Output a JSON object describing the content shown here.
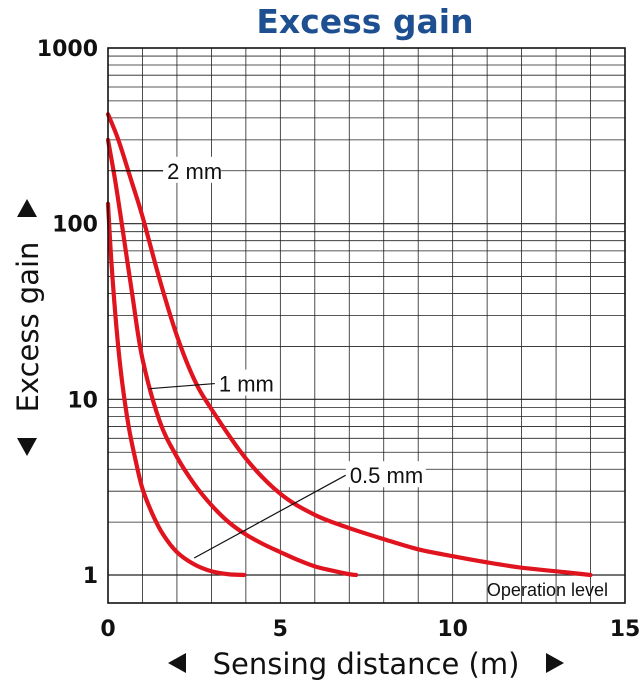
{
  "chart_data": {
    "type": "line",
    "title": "Excess gain",
    "xlabel": "Sensing distance (m)",
    "ylabel": "Excess gain",
    "xlim": [
      0,
      15
    ],
    "ylim": [
      1,
      1000
    ],
    "yscale": "log",
    "x_ticks": [
      "0",
      "5",
      "10",
      "15"
    ],
    "y_ticks": [
      "1",
      "10",
      "100",
      "1000"
    ],
    "grid": true,
    "annotation": "Operation level",
    "series": [
      {
        "name": "2 mm",
        "color": "#e0141e",
        "x": [
          0,
          0.3,
          0.7,
          1,
          1.5,
          2,
          2.5,
          3,
          4,
          5,
          6,
          7,
          8,
          9,
          10,
          11,
          12,
          13,
          14
        ],
        "y": [
          420,
          300,
          170,
          110,
          48,
          23,
          13,
          8.8,
          4.6,
          2.9,
          2.2,
          1.85,
          1.6,
          1.4,
          1.28,
          1.18,
          1.1,
          1.05,
          1
        ]
      },
      {
        "name": "1 mm",
        "color": "#e0141e",
        "x": [
          0,
          0.2,
          0.4,
          0.7,
          1,
          1.5,
          2,
          2.5,
          3,
          3.5,
          4,
          4.5,
          5,
          5.5,
          6,
          6.5,
          7,
          7.2
        ],
        "y": [
          300,
          180,
          100,
          40,
          17,
          7.5,
          4.7,
          3.3,
          2.5,
          2,
          1.7,
          1.5,
          1.35,
          1.22,
          1.12,
          1.06,
          1.01,
          1
        ]
      },
      {
        "name": "0.5 mm",
        "color": "#e0141e",
        "x": [
          0,
          0.1,
          0.25,
          0.4,
          0.6,
          0.8,
          1,
          1.3,
          1.6,
          2,
          2.5,
          3,
          3.5,
          3.95
        ],
        "y": [
          130,
          60,
          25,
          13,
          7,
          4.5,
          3.1,
          2.2,
          1.7,
          1.35,
          1.15,
          1.05,
          1.01,
          1
        ]
      }
    ],
    "series_labels": [
      {
        "text": "2 mm",
        "from": [
          0.1,
          200
        ],
        "to": [
          1.6,
          200
        ]
      },
      {
        "text": "1 mm",
        "from": [
          1.2,
          11.5
        ],
        "to": [
          3.1,
          12.3
        ]
      },
      {
        "text": "0.5 mm",
        "from": [
          2.5,
          1.25
        ],
        "to": [
          6.9,
          3.7
        ]
      }
    ]
  }
}
